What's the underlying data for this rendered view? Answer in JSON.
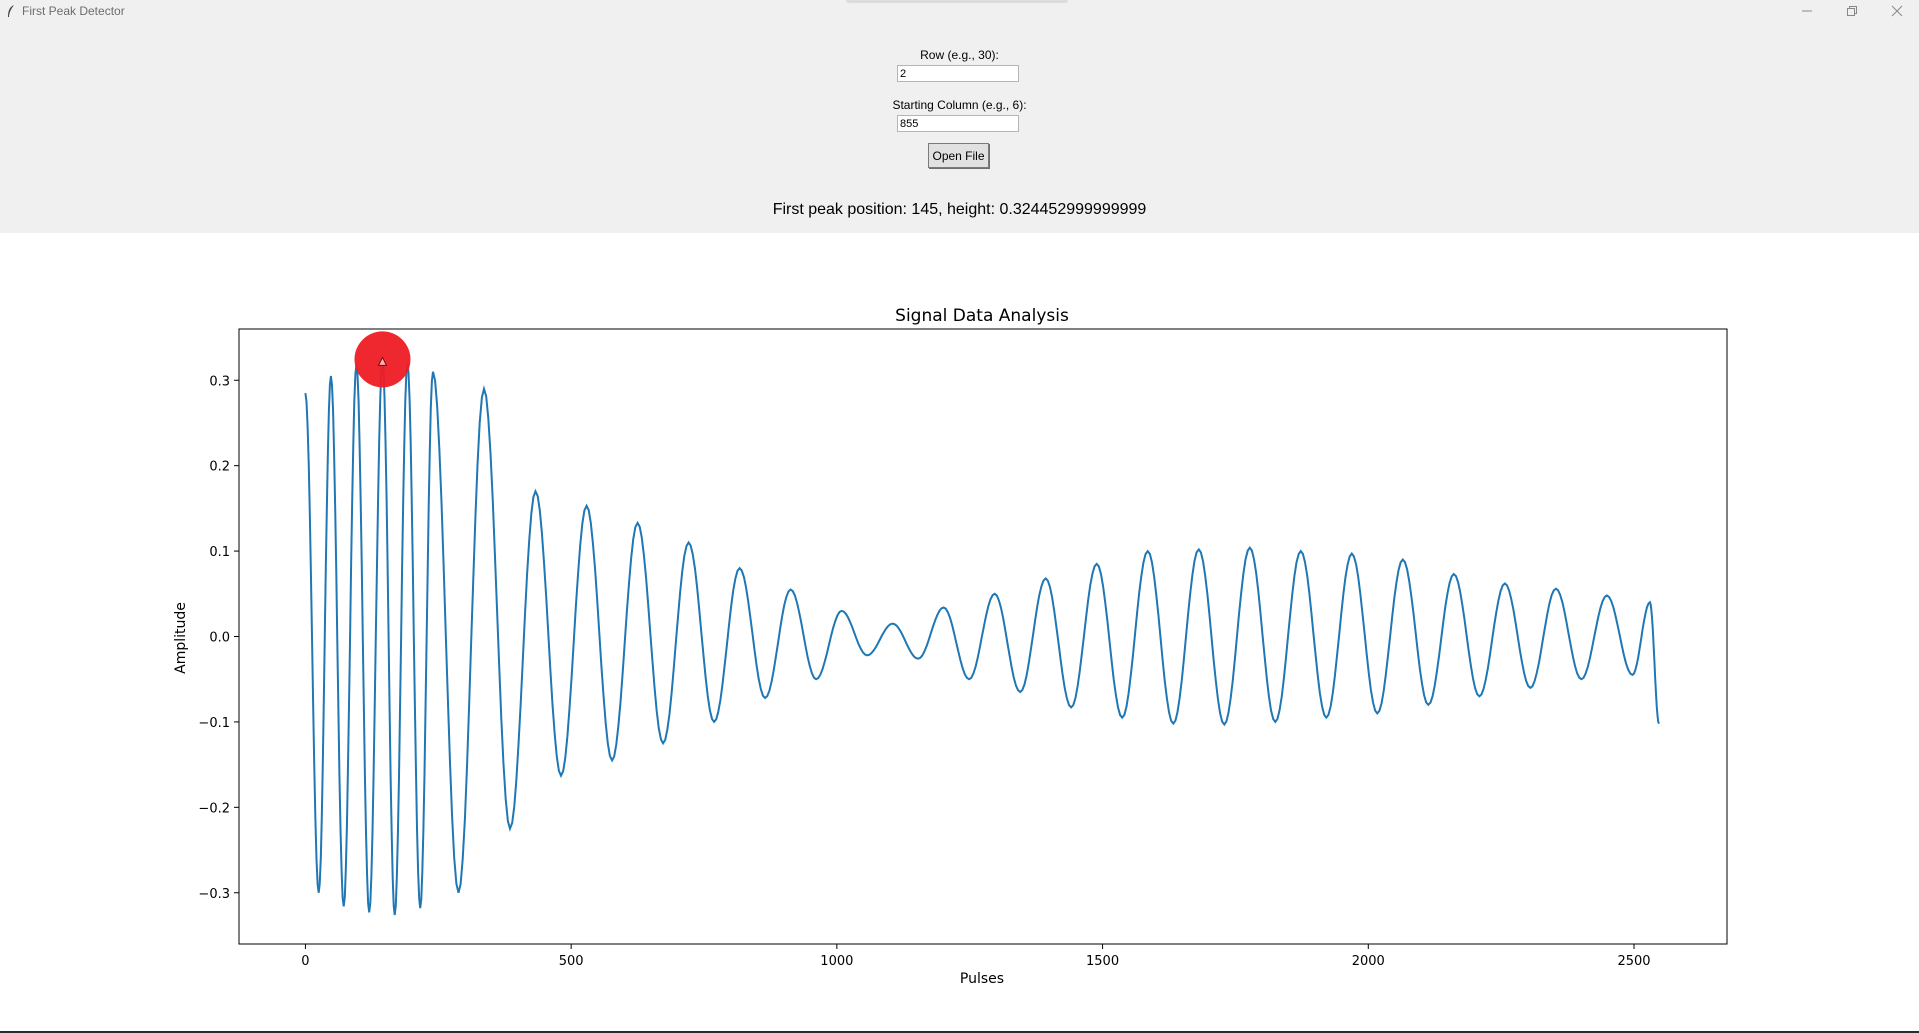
{
  "window": {
    "title": "First Peak Detector"
  },
  "form": {
    "row_label": "Row (e.g., 30):",
    "row_value": "2",
    "col_label": "Starting Column (e.g., 6):",
    "col_value": "855",
    "open_button": "Open File"
  },
  "result_text": "First peak position: 145, height: 0.324452999999999",
  "colors": {
    "line": "#1f77b4",
    "marker": "#ee1c25",
    "panel_bg": "#f0f0f0"
  },
  "chart_data": {
    "type": "line",
    "title": "Signal Data Analysis",
    "xlabel": "Pulses",
    "ylabel": "Amplitude",
    "xlim": [
      -125,
      2675
    ],
    "ylim": [
      -0.36,
      0.36
    ],
    "xticks": [
      0,
      500,
      1000,
      1500,
      2000,
      2500
    ],
    "yticks": [
      -0.3,
      -0.2,
      -0.1,
      0.0,
      0.1,
      0.2,
      0.3
    ],
    "ytick_labels": [
      "−0.3",
      "−0.2",
      "−0.1",
      "0.0",
      "0.1",
      "0.2",
      "0.3"
    ],
    "grid": false,
    "series": [
      {
        "x_start": 0,
        "x_end": 2547,
        "x": [
          0,
          25,
          48,
          72,
          96,
          120,
          145,
          168,
          192,
          216,
          240,
          288,
          336,
          385,
          433,
          481,
          529,
          577,
          625,
          673,
          721,
          769,
          817,
          865,
          913,
          961,
          1009,
          1057,
          1105,
          1153,
          1201,
          1249,
          1297,
          1345,
          1393,
          1441,
          1489,
          1537,
          1585,
          1633,
          1681,
          1729,
          1777,
          1825,
          1873,
          1921,
          1969,
          2017,
          2065,
          2113,
          2161,
          2209,
          2257,
          2305,
          2353,
          2401,
          2449,
          2497,
          2530,
          2547
        ],
        "y": [
          0.285,
          -0.3,
          0.305,
          -0.316,
          0.318,
          -0.323,
          0.324,
          -0.326,
          0.32,
          -0.318,
          0.31,
          -0.3,
          0.29,
          -0.225,
          0.17,
          -0.163,
          0.153,
          -0.145,
          0.133,
          -0.125,
          0.11,
          -0.1,
          0.08,
          -0.072,
          0.055,
          -0.05,
          0.03,
          -0.022,
          0.015,
          -0.026,
          0.034,
          -0.05,
          0.05,
          -0.065,
          0.068,
          -0.083,
          0.085,
          -0.095,
          0.1,
          -0.102,
          0.102,
          -0.103,
          0.104,
          -0.1,
          0.1,
          -0.095,
          0.097,
          -0.09,
          0.09,
          -0.08,
          0.073,
          -0.07,
          0.062,
          -0.06,
          0.056,
          -0.05,
          0.048,
          -0.045,
          0.04,
          -0.102
        ]
      }
    ],
    "marker": {
      "x": 145,
      "y": 0.324452999999999
    }
  }
}
